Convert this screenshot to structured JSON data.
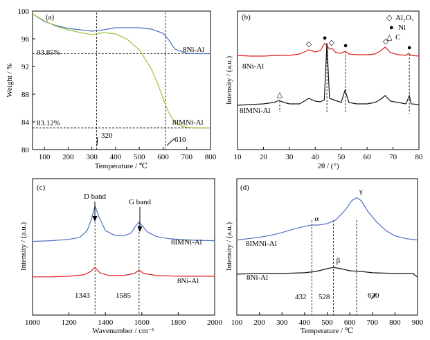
{
  "colors": {
    "blue": "#4a6fc1",
    "green": "#9ac43c",
    "red": "#e01b1b",
    "black": "#111111"
  },
  "chart_data": [
    {
      "id": "a",
      "type": "line",
      "panel_label": "(a)",
      "xlabel": "Temperature / ℃",
      "ylabel": "Weight / %",
      "xlim": [
        50,
        800
      ],
      "ylim": [
        80,
        100
      ],
      "xticks": [
        100,
        200,
        300,
        400,
        500,
        600,
        700,
        800
      ],
      "yticks": [
        80,
        84,
        88,
        92,
        96,
        100
      ],
      "series": [
        {
          "name": "8Ni-Al",
          "color": "#4a6fc1",
          "x": [
            50,
            100,
            150,
            200,
            250,
            300,
            350,
            400,
            450,
            500,
            550,
            600,
            625,
            650,
            700,
            750,
            800
          ],
          "y": [
            99.6,
            98.5,
            97.9,
            97.5,
            97.3,
            97.1,
            97.3,
            97.6,
            97.6,
            97.6,
            97.4,
            96.8,
            95.8,
            94.5,
            93.9,
            93.85,
            93.85
          ]
        },
        {
          "name": "8IMNi-Al",
          "color": "#9ac43c",
          "x": [
            50,
            100,
            150,
            200,
            250,
            300,
            350,
            400,
            450,
            500,
            550,
            580,
            600,
            620,
            640,
            660,
            680,
            700,
            750,
            800
          ],
          "y": [
            99.6,
            98.6,
            97.8,
            97.3,
            96.9,
            96.6,
            96.9,
            96.7,
            95.9,
            94.4,
            91.7,
            89.3,
            87.4,
            85.6,
            84.4,
            83.7,
            83.4,
            83.2,
            83.12,
            83.12
          ]
        }
      ],
      "hlines": [
        {
          "y": 93.85,
          "label": "93.85%"
        },
        {
          "y": 83.12,
          "label": "83.12%"
        }
      ],
      "vlines": [
        {
          "x": 320,
          "label": "320"
        },
        {
          "x": 610,
          "label": "610"
        }
      ]
    },
    {
      "id": "b",
      "type": "line",
      "panel_label": "(b)",
      "xlabel": "2θ / (°)",
      "ylabel": "Intensity / (a.u.)",
      "xlim": [
        10,
        80
      ],
      "ylim": [
        0,
        100
      ],
      "xticks": [
        10,
        20,
        30,
        40,
        50,
        60,
        70,
        80
      ],
      "legend": [
        {
          "symbol": "◇",
          "label": "Al₂O₃"
        },
        {
          "symbol": "●",
          "label": "Ni"
        },
        {
          "symbol": "△",
          "label": "C"
        }
      ],
      "series": [
        {
          "name": "8Ni-Al",
          "color": "#e01b1b",
          "x": [
            10,
            15,
            20,
            25,
            30,
            34,
            37.5,
            40,
            42,
            43.5,
            44.5,
            45.5,
            46.5,
            48,
            50,
            51.5,
            53,
            56,
            60,
            63,
            65,
            67,
            69,
            72,
            75,
            76,
            77,
            80
          ],
          "y": [
            68,
            67.5,
            67.5,
            68,
            68,
            69,
            72,
            70.5,
            71.5,
            76.5,
            75,
            72.5,
            73,
            70,
            69.5,
            71,
            69,
            68.5,
            68.5,
            69,
            71,
            74,
            70,
            68.5,
            68,
            69.5,
            68,
            67.5
          ]
        },
        {
          "name": "8IMNi-Al",
          "color": "#111111",
          "x": [
            10,
            15,
            20,
            24,
            26,
            28,
            30,
            34,
            37.5,
            40,
            42,
            43.5,
            44.5,
            45.5,
            47,
            50,
            51.5,
            53,
            56,
            60,
            63,
            65,
            67,
            69,
            72,
            75,
            76.3,
            77,
            80
          ],
          "y": [
            32,
            32.5,
            33,
            34,
            35.5,
            34,
            33,
            33,
            37,
            35,
            34.5,
            36,
            77,
            37,
            36,
            34,
            43,
            34,
            33,
            33,
            34,
            36,
            39,
            35,
            34,
            33,
            39,
            33,
            32.5
          ]
        }
      ],
      "peaks": [
        {
          "x": 37.5,
          "y": 72,
          "symbol": "◇"
        },
        {
          "x": 43.7,
          "y": 76.5,
          "symbol": "●"
        },
        {
          "x": 46.3,
          "y": 73,
          "symbol": "◇"
        },
        {
          "x": 51.7,
          "y": 71,
          "symbol": "●"
        },
        {
          "x": 67.2,
          "y": 74,
          "symbol": "◇"
        },
        {
          "x": 76.3,
          "y": 69.5,
          "symbol": "●"
        },
        {
          "x": 26.3,
          "y": 35.5,
          "symbol": "△"
        }
      ],
      "vlines": [
        {
          "x": 26.3,
          "y_from": 27,
          "y_to": 35
        },
        {
          "x": 44.5,
          "y_from": 26,
          "y_to": 76
        },
        {
          "x": 51.7,
          "y_from": 26,
          "y_to": 71
        },
        {
          "x": 76.3,
          "y_from": 26,
          "y_to": 69
        }
      ]
    },
    {
      "id": "c",
      "type": "line",
      "panel_label": "(c)",
      "xlabel": "Wavenumber / cm⁻¹",
      "ylabel": "Intensity / (a.u.)",
      "xlim": [
        1000,
        2000
      ],
      "ylim": [
        0,
        100
      ],
      "xticks": [
        1000,
        1200,
        1400,
        1600,
        1800,
        2000
      ],
      "series": [
        {
          "name": "8IMNi-Al",
          "color": "#4a6fc1",
          "x": [
            1000,
            1100,
            1200,
            1260,
            1300,
            1320,
            1343,
            1365,
            1400,
            1450,
            1500,
            1540,
            1570,
            1585,
            1600,
            1630,
            1680,
            1750,
            1850,
            2000
          ],
          "y": [
            54,
            54.5,
            55.5,
            57,
            62,
            69,
            80,
            72,
            62,
            58.5,
            58,
            60,
            66,
            68,
            66,
            61,
            57.5,
            56,
            55,
            54.5
          ]
        },
        {
          "name": "8Ni-Al",
          "color": "#e01b1b",
          "x": [
            1000,
            1100,
            1200,
            1280,
            1320,
            1343,
            1370,
            1420,
            1500,
            1560,
            1585,
            1610,
            1680,
            1800,
            2000
          ],
          "y": [
            28,
            28,
            28.5,
            29.5,
            32,
            35,
            31,
            29,
            29,
            30.5,
            33,
            30.5,
            29,
            28.5,
            28.5
          ]
        }
      ],
      "band_labels": [
        {
          "text": "D band",
          "x": 1343
        },
        {
          "text": "G band",
          "x": 1585
        }
      ],
      "vlines": [
        {
          "x": 1343,
          "label": "1343"
        },
        {
          "x": 1585,
          "label": "1585"
        }
      ]
    },
    {
      "id": "d",
      "type": "line",
      "panel_label": "(d)",
      "xlabel": "Temperature / ℃",
      "ylabel": "Intensity / (a.u.)",
      "xlim": [
        100,
        900
      ],
      "ylim": [
        0,
        100
      ],
      "xticks": [
        100,
        200,
        300,
        400,
        500,
        600,
        700,
        800,
        900
      ],
      "series": [
        {
          "name": "8IMNi-Al",
          "color": "#4a6fc1",
          "x": [
            100,
            150,
            200,
            250,
            300,
            350,
            400,
            432,
            460,
            500,
            540,
            580,
            610,
            630,
            650,
            680,
            720,
            760,
            800,
            850,
            900
          ],
          "y": [
            55,
            56,
            57,
            58.5,
            60.5,
            63,
            65,
            66,
            66,
            67,
            70,
            77,
            84,
            86,
            84,
            76,
            68,
            62,
            58,
            56,
            55
          ]
        },
        {
          "name": "8Ni-Al",
          "color": "#111111",
          "x": [
            100,
            200,
            300,
            400,
            450,
            500,
            528,
            560,
            600,
            650,
            700,
            800,
            880,
            890,
            900
          ],
          "y": [
            30,
            30.5,
            30.5,
            31,
            32,
            34,
            35,
            34,
            32.5,
            32,
            31,
            30.5,
            30.5,
            29,
            28
          ]
        }
      ],
      "peak_labels": [
        {
          "text": "α",
          "x": 432,
          "y": 66
        },
        {
          "text": "β",
          "x": 528,
          "y": 35
        },
        {
          "text": "γ",
          "x": 630,
          "y": 86
        }
      ],
      "vlines": [
        {
          "x": 432,
          "label": "432"
        },
        {
          "x": 528,
          "label": "528"
        },
        {
          "x": 630,
          "label": "630"
        }
      ]
    }
  ]
}
